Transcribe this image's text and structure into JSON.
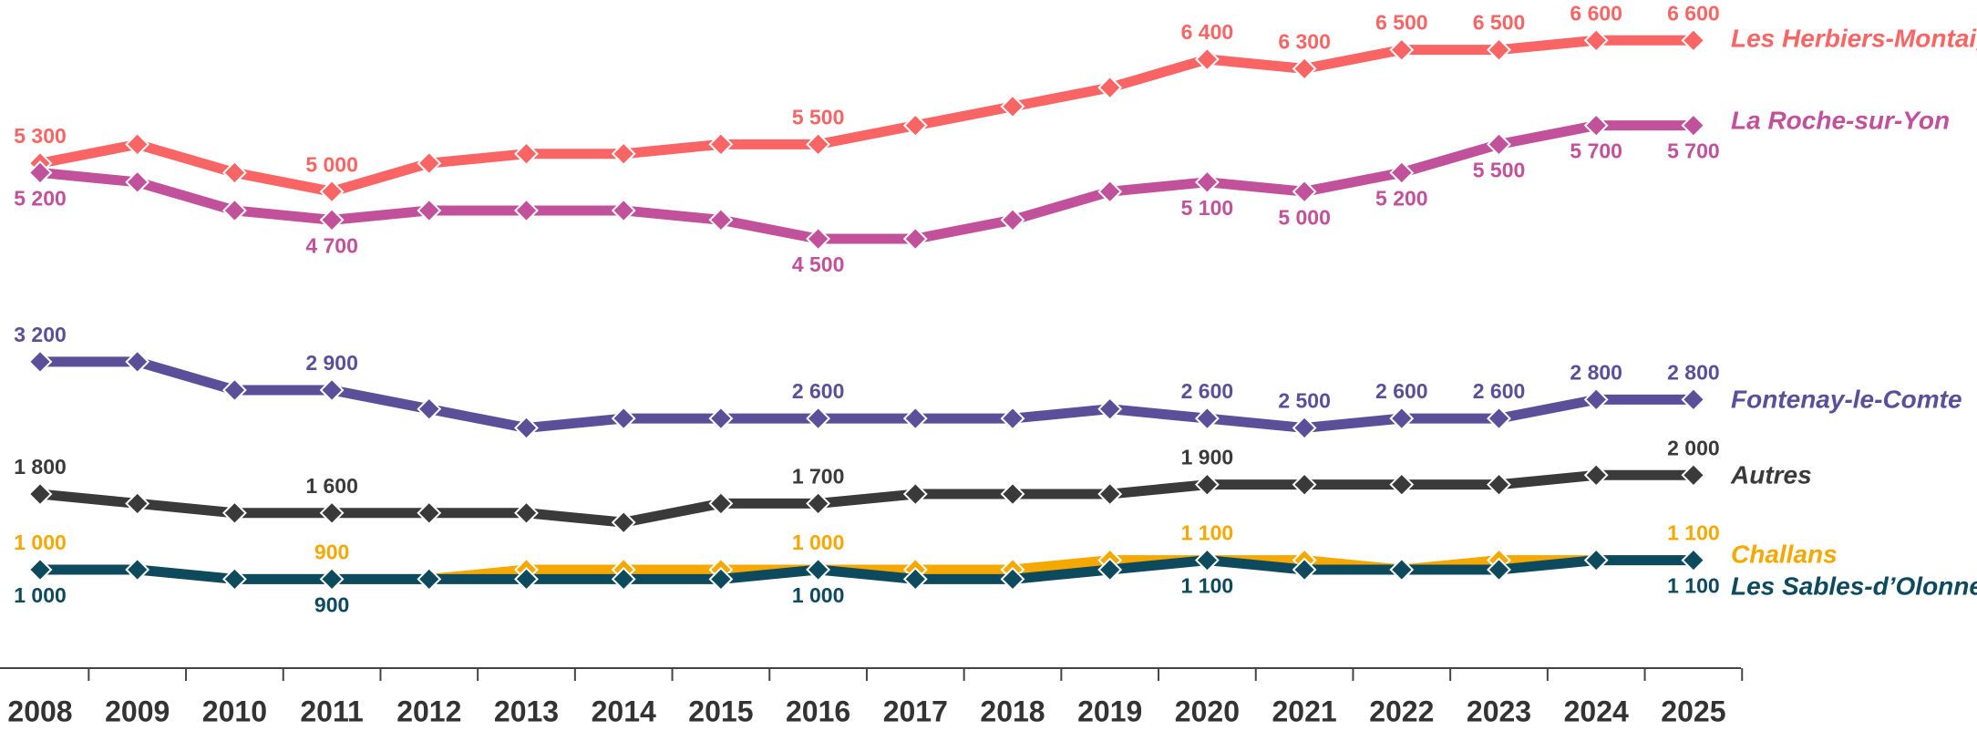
{
  "chart_data": {
    "type": "line",
    "x": [
      2008,
      2009,
      2010,
      2011,
      2012,
      2013,
      2014,
      2015,
      2016,
      2017,
      2018,
      2019,
      2020,
      2021,
      2022,
      2023,
      2024,
      2025
    ],
    "series": [
      {
        "name": "Les Herbiers-Montaigu",
        "color": "#f96464",
        "values": [
          5300,
          5500,
          5200,
          5000,
          5300,
          5400,
          5400,
          5500,
          5500,
          5700,
          5900,
          6100,
          6400,
          6300,
          6500,
          6500,
          6600,
          6600
        ],
        "value_labels": [
          "5 300",
          null,
          null,
          "5 000",
          null,
          null,
          null,
          null,
          "5 500",
          null,
          null,
          null,
          "6 400",
          "6 300",
          "6 500",
          "6 500",
          "6 600",
          "6 600"
        ]
      },
      {
        "name": "La Roche-sur-Yon",
        "color": "#c0519a",
        "values": [
          5200,
          5100,
          4800,
          4700,
          4800,
          4800,
          4800,
          4700,
          4500,
          4500,
          4700,
          5000,
          5100,
          5000,
          5200,
          5500,
          5700,
          5700
        ],
        "value_labels": [
          "5 200",
          null,
          null,
          "4 700",
          null,
          null,
          null,
          null,
          "4 500",
          null,
          null,
          null,
          "5 100",
          "5 000",
          "5 200",
          "5 500",
          "5 700",
          "5 700"
        ]
      },
      {
        "name": "Fontenay-le-Comte",
        "color": "#5b4f9a",
        "values": [
          3200,
          3200,
          2900,
          2900,
          2700,
          2500,
          2600,
          2600,
          2600,
          2600,
          2600,
          2700,
          2600,
          2500,
          2600,
          2600,
          2800,
          2800
        ],
        "value_labels": [
          "3 200",
          null,
          null,
          "2 900",
          null,
          null,
          null,
          null,
          "2 600",
          null,
          null,
          null,
          "2 600",
          "2 500",
          "2 600",
          "2 600",
          "2 800",
          "2 800"
        ]
      },
      {
        "name": "Autres",
        "color": "#3a3a3a",
        "values": [
          1800,
          1700,
          1600,
          1600,
          1600,
          1600,
          1500,
          1700,
          1700,
          1800,
          1800,
          1800,
          1900,
          1900,
          1900,
          1900,
          2000,
          2000
        ],
        "value_labels": [
          "1 800",
          null,
          null,
          "1 600",
          null,
          null,
          null,
          null,
          "1 700",
          null,
          null,
          null,
          "1 900",
          null,
          null,
          null,
          null,
          "2 000"
        ]
      },
      {
        "name": "Challans",
        "color": "#f5a800",
        "values": [
          1000,
          1000,
          900,
          900,
          900,
          1000,
          1000,
          1000,
          1000,
          1000,
          1000,
          1100,
          1100,
          1100,
          1000,
          1100,
          1100,
          1100
        ],
        "value_labels": [
          "1 000",
          null,
          null,
          "900",
          null,
          null,
          null,
          null,
          "1 000",
          null,
          null,
          null,
          "1 100",
          null,
          null,
          null,
          null,
          "1 100"
        ]
      },
      {
        "name": "Les Sables-d’Olonne",
        "color": "#0d4a5e",
        "values": [
          1000,
          1000,
          900,
          900,
          900,
          900,
          900,
          900,
          1000,
          900,
          900,
          1000,
          1100,
          1000,
          1000,
          1000,
          1100,
          1100
        ],
        "value_labels": [
          "1 000",
          null,
          null,
          "900",
          null,
          null,
          null,
          null,
          "1 000",
          null,
          null,
          null,
          "1 100",
          null,
          null,
          null,
          null,
          "1 100"
        ]
      }
    ]
  }
}
